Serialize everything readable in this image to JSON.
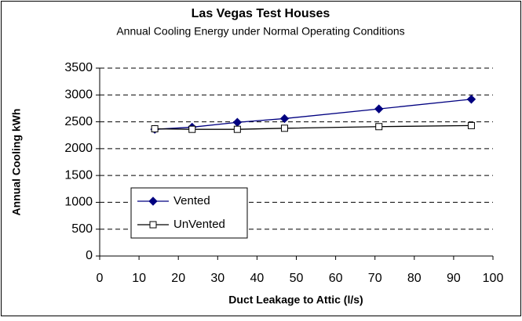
{
  "chart_data": {
    "type": "line",
    "title": "Las Vegas Test Houses",
    "subtitle": "Annual Cooling Energy under Normal Operating Conditions",
    "x_label": "Duct Leakage to Attic (l/s)",
    "y_label": "Annual Cooling kWh",
    "x": [
      14,
      23.5,
      35,
      47,
      71,
      94.5
    ],
    "series": [
      {
        "name": "Vented",
        "color": "#000080",
        "marker": "diamond",
        "values": [
          2360,
          2400,
          2490,
          2560,
          2740,
          2920
        ]
      },
      {
        "name": "UnVented",
        "color": "#000000",
        "marker": "square",
        "values": [
          2370,
          2360,
          2360,
          2380,
          2410,
          2430
        ]
      }
    ],
    "xlim": [
      0,
      100
    ],
    "xticks": [
      0,
      10,
      20,
      30,
      40,
      50,
      60,
      70,
      80,
      90,
      100
    ],
    "ylim": [
      0,
      3500
    ],
    "yticks": [
      0,
      500,
      1000,
      1500,
      2000,
      2500,
      3000,
      3500
    ],
    "grid": true,
    "legend": "lower left"
  }
}
